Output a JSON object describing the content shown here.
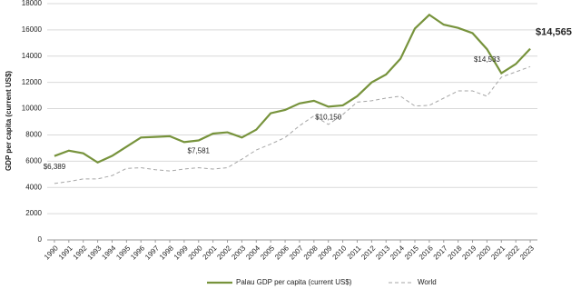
{
  "chart_data": {
    "type": "line",
    "y_label": "GDP per capita (current US$)",
    "categories": [
      "1990",
      "1991",
      "1992",
      "1993",
      "1994",
      "1995",
      "1996",
      "1997",
      "1998",
      "1999",
      "2000",
      "2001",
      "2002",
      "2003",
      "2004",
      "2005",
      "2006",
      "2007",
      "2008",
      "2009",
      "2010",
      "2011",
      "2012",
      "2013",
      "2014",
      "2015",
      "2016",
      "2017",
      "2018",
      "2019",
      "2020",
      "2021",
      "2022",
      "2023"
    ],
    "series": [
      {
        "name": "Palau GDP per capita (current US$)",
        "color": "#77933c",
        "dashed": false,
        "values": [
          6389,
          6800,
          6600,
          5900,
          6400,
          7100,
          7800,
          7850,
          7900,
          7450,
          7581,
          8100,
          8200,
          7800,
          8400,
          9650,
          9900,
          10400,
          10600,
          10150,
          10250,
          10950,
          12000,
          12600,
          13800,
          16100,
          17150,
          16400,
          16150,
          15750,
          14533,
          12700,
          13400,
          14565
        ],
        "value_labels": [
          "$6,389",
          null,
          null,
          null,
          null,
          null,
          null,
          null,
          null,
          null,
          "$7,581",
          null,
          null,
          null,
          null,
          null,
          null,
          null,
          null,
          "$10,150",
          null,
          null,
          null,
          null,
          null,
          null,
          null,
          null,
          null,
          null,
          "$14,533",
          null,
          null,
          "$14,565"
        ]
      },
      {
        "name": "World",
        "color": "#a6a6a6",
        "dashed": true,
        "values": [
          4300,
          4450,
          4650,
          4650,
          4900,
          5450,
          5500,
          5350,
          5250,
          5400,
          5500,
          5400,
          5500,
          6150,
          6850,
          7300,
          7800,
          8700,
          9450,
          8800,
          9550,
          10500,
          10600,
          10800,
          10950,
          10200,
          10250,
          10800,
          11350,
          11350,
          10950,
          12400,
          12800,
          13200
        ]
      }
    ],
    "ylim": [
      0,
      18000
    ],
    "yticks": [
      0,
      2000,
      4000,
      6000,
      8000,
      10000,
      12000,
      14000,
      16000,
      18000
    ],
    "grid": true,
    "legend": "bottom"
  }
}
